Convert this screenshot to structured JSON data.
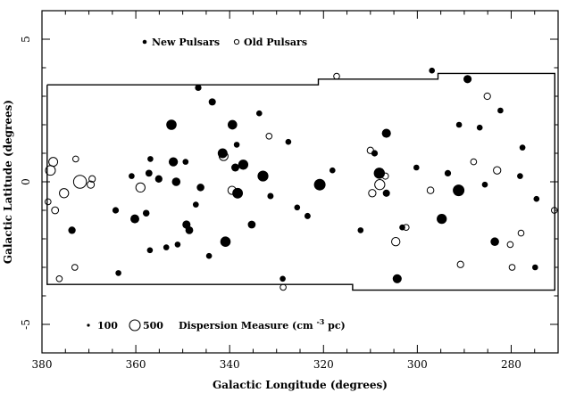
{
  "chart_data": {
    "type": "scatter",
    "xlabel": "Galactic Longitude (degrees)",
    "ylabel": "Galactic Latitude (degrees)",
    "xlim": [
      380,
      270
    ],
    "ylim": [
      -6,
      6
    ],
    "x_ticks": [
      380,
      360,
      340,
      320,
      300,
      280
    ],
    "y_ticks": [
      5,
      0,
      -5
    ],
    "x_minor_step": 5,
    "y_minor_step": 1,
    "grid": false,
    "legend": {
      "series_labels": [
        "New Pulsars",
        "Old Pulsars"
      ],
      "size_prefix": "",
      "size_values": [
        100,
        500
      ],
      "size_label_main": "Dispersion Measure (cm",
      "size_label_exp": "-3",
      "size_label_end": "pc)"
    },
    "survey_boundary": [
      [
        378.9,
        3.4
      ],
      [
        321.1,
        3.4
      ],
      [
        321.1,
        3.6
      ],
      [
        295.6,
        3.6
      ],
      [
        295.6,
        3.8
      ],
      [
        270.7,
        3.8
      ],
      [
        270.7,
        -3.8
      ],
      [
        313.8,
        -3.8
      ],
      [
        313.8,
        -3.6
      ],
      [
        378.9,
        -3.6
      ],
      [
        378.9,
        3.4
      ]
    ],
    "series": [
      {
        "name": "New Pulsars",
        "marker": "filled",
        "points": [
          [
            373.6,
            -1.7,
            120
          ],
          [
            364.3,
            -1.0,
            80
          ],
          [
            360.2,
            -1.3,
            200
          ],
          [
            357.8,
            -1.1,
            90
          ],
          [
            357.2,
            0.3,
            100
          ],
          [
            355.1,
            0.1,
            120
          ],
          [
            352.4,
            2.0,
            300
          ],
          [
            352.0,
            0.7,
            220
          ],
          [
            351.4,
            0.0,
            180
          ],
          [
            349.2,
            -1.5,
            160
          ],
          [
            348.6,
            -1.7,
            140
          ],
          [
            346.7,
            3.3,
            80
          ],
          [
            346.2,
            -0.2,
            130
          ],
          [
            343.7,
            2.8,
            110
          ],
          [
            341.5,
            1.0,
            260
          ],
          [
            340.9,
            -2.1,
            300
          ],
          [
            339.4,
            2.0,
            240
          ],
          [
            338.8,
            0.5,
            150
          ],
          [
            338.3,
            -0.4,
            320
          ],
          [
            337.1,
            0.6,
            280
          ],
          [
            335.3,
            -1.5,
            140
          ],
          [
            332.9,
            0.2,
            340
          ],
          [
            331.3,
            -0.5,
            70
          ],
          [
            327.5,
            1.4,
            60
          ],
          [
            325.6,
            -0.9,
            60
          ],
          [
            323.4,
            -1.2,
            70
          ],
          [
            320.8,
            -0.1,
            400
          ],
          [
            312.1,
            -1.7,
            60
          ],
          [
            309.1,
            1.0,
            80
          ],
          [
            308.1,
            0.3,
            360
          ],
          [
            306.6,
            1.7,
            210
          ],
          [
            306.6,
            -0.4,
            110
          ],
          [
            304.3,
            -3.4,
            210
          ],
          [
            294.8,
            -1.3,
            280
          ],
          [
            293.5,
            0.3,
            80
          ],
          [
            291.2,
            -0.3,
            400
          ],
          [
            289.3,
            3.6,
            160
          ],
          [
            286.7,
            1.9,
            60
          ],
          [
            283.5,
            -2.1,
            180
          ],
          [
            278.1,
            0.2,
            60
          ],
          [
            274.9,
            -3.0,
            60
          ],
          [
            360.9,
            0.2,
            60
          ],
          [
            363.7,
            -3.2,
            60
          ],
          [
            356.9,
            0.8,
            60
          ],
          [
            353.5,
            -2.3,
            60
          ],
          [
            349.4,
            0.7,
            60
          ],
          [
            347.2,
            -0.8,
            60
          ],
          [
            344.4,
            -2.6,
            60
          ],
          [
            338.5,
            1.3,
            60
          ],
          [
            333.7,
            2.4,
            60
          ],
          [
            328.7,
            -3.4,
            60
          ],
          [
            318.1,
            0.4,
            60
          ],
          [
            303.2,
            -1.6,
            60
          ],
          [
            300.2,
            0.5,
            60
          ],
          [
            296.9,
            3.9,
            60
          ],
          [
            291.1,
            2.0,
            60
          ],
          [
            285.6,
            -0.1,
            60
          ],
          [
            282.3,
            2.5,
            60
          ],
          [
            277.6,
            1.2,
            60
          ],
          [
            274.6,
            -0.6,
            60
          ],
          [
            351.1,
            -2.2,
            60
          ],
          [
            357.0,
            -2.4,
            60
          ]
        ]
      },
      {
        "name": "Old Pulsars",
        "marker": "open",
        "points": [
          [
            378.2,
            0.4,
            260
          ],
          [
            377.6,
            0.7,
            200
          ],
          [
            378.7,
            -0.7,
            60
          ],
          [
            377.2,
            -1.0,
            100
          ],
          [
            375.3,
            -0.4,
            220
          ],
          [
            371.9,
            0.0,
            520
          ],
          [
            369.6,
            -0.1,
            110
          ],
          [
            369.3,
            0.1,
            80
          ],
          [
            376.3,
            -3.4,
            60
          ],
          [
            373.0,
            -3.0,
            60
          ],
          [
            372.8,
            0.8,
            60
          ],
          [
            359.0,
            -0.2,
            220
          ],
          [
            341.3,
            0.9,
            200
          ],
          [
            339.5,
            -0.3,
            160
          ],
          [
            331.6,
            1.6,
            60
          ],
          [
            328.6,
            -3.7,
            60
          ],
          [
            317.2,
            3.7,
            60
          ],
          [
            310.0,
            1.1,
            80
          ],
          [
            309.6,
            -0.4,
            120
          ],
          [
            308.0,
            -0.1,
            280
          ],
          [
            306.8,
            0.2,
            70
          ],
          [
            304.6,
            -2.1,
            170
          ],
          [
            302.4,
            -1.6,
            60
          ],
          [
            297.2,
            -0.3,
            90
          ],
          [
            288.0,
            0.7,
            60
          ],
          [
            290.8,
            -2.9,
            80
          ],
          [
            285.1,
            3.0,
            80
          ],
          [
            283.0,
            0.4,
            120
          ],
          [
            280.2,
            -2.2,
            60
          ],
          [
            279.8,
            -3.0,
            60
          ],
          [
            277.9,
            -1.8,
            60
          ],
          [
            270.8,
            -1.0,
            60
          ]
        ]
      }
    ]
  }
}
